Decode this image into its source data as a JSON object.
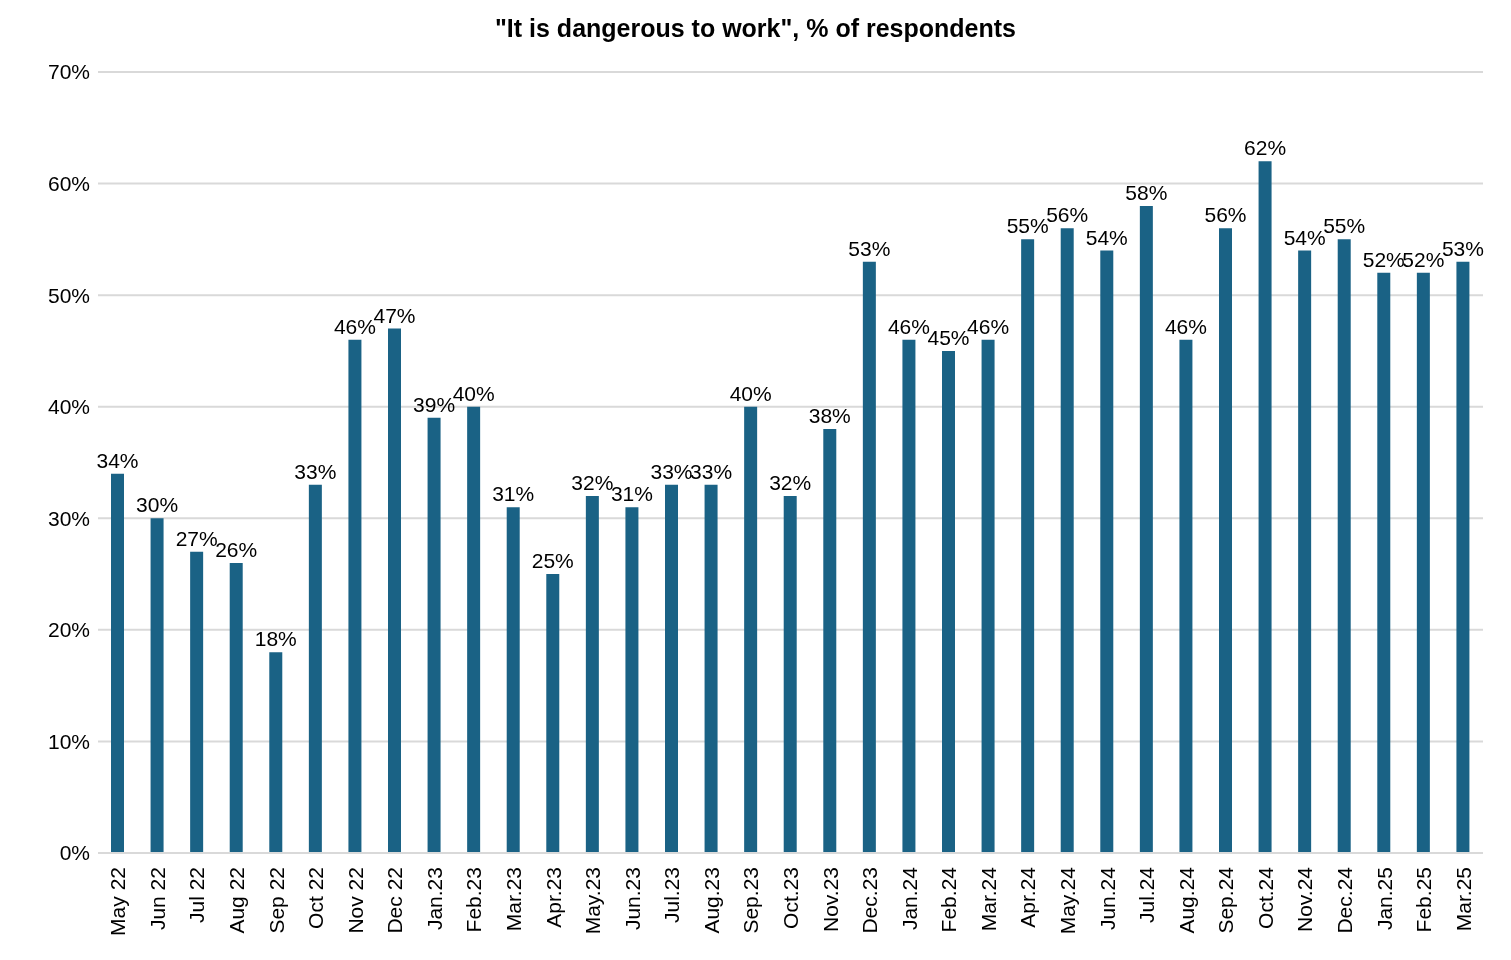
{
  "chart_data": {
    "type": "bar",
    "title": "\"It is dangerous to work\", % of respondents",
    "categories": [
      "May 22",
      "Jun 22",
      "Jul 22",
      "Aug 22",
      "Sep 22",
      "Oct 22",
      "Nov 22",
      "Dec 22",
      "Jan.23",
      "Feb.23",
      "Mar.23",
      "Apr.23",
      "May.23",
      "Jun.23",
      "Jul.23",
      "Aug.23",
      "Sep.23",
      "Oct.23",
      "Nov.23",
      "Dec.23",
      "Jan.24",
      "Feb.24",
      "Mar.24",
      "Apr.24",
      "May.24",
      "Jun.24",
      "Jul.24",
      "Aug.24",
      "Sep.24",
      "Oct.24",
      "Nov.24",
      "Dec.24",
      "Jan.25",
      "Feb.25",
      "Mar.25"
    ],
    "values": [
      34,
      30,
      27,
      26,
      18,
      33,
      46,
      47,
      39,
      40,
      31,
      25,
      32,
      31,
      33,
      33,
      40,
      32,
      38,
      53,
      46,
      45,
      46,
      55,
      56,
      54,
      58,
      46,
      56,
      62,
      54,
      55,
      52,
      52,
      53
    ],
    "value_labels": [
      "34%",
      "30%",
      "27%",
      "26%",
      "18%",
      "33%",
      "46%",
      "47%",
      "39%",
      "40%",
      "31%",
      "25%",
      "32%",
      "31%",
      "33%",
      "33%",
      "40%",
      "32%",
      "38%",
      "53%",
      "46%",
      "45%",
      "46%",
      "55%",
      "56%",
      "54%",
      "58%",
      "46%",
      "56%",
      "62%",
      "54%",
      "55%",
      "52%",
      "52%",
      "53%"
    ],
    "color": "#1a6285",
    "ylim": [
      0,
      70
    ],
    "yticks": [
      {
        "value": 0,
        "label": "0%"
      },
      {
        "value": 10,
        "label": "10%"
      },
      {
        "value": 20,
        "label": "20%"
      },
      {
        "value": 30,
        "label": "30%"
      },
      {
        "value": 40,
        "label": "40%"
      },
      {
        "value": 50,
        "label": "50%"
      },
      {
        "value": 60,
        "label": "60%"
      },
      {
        "value": 70,
        "label": "70%"
      }
    ],
    "grid": "y",
    "legend": false
  }
}
